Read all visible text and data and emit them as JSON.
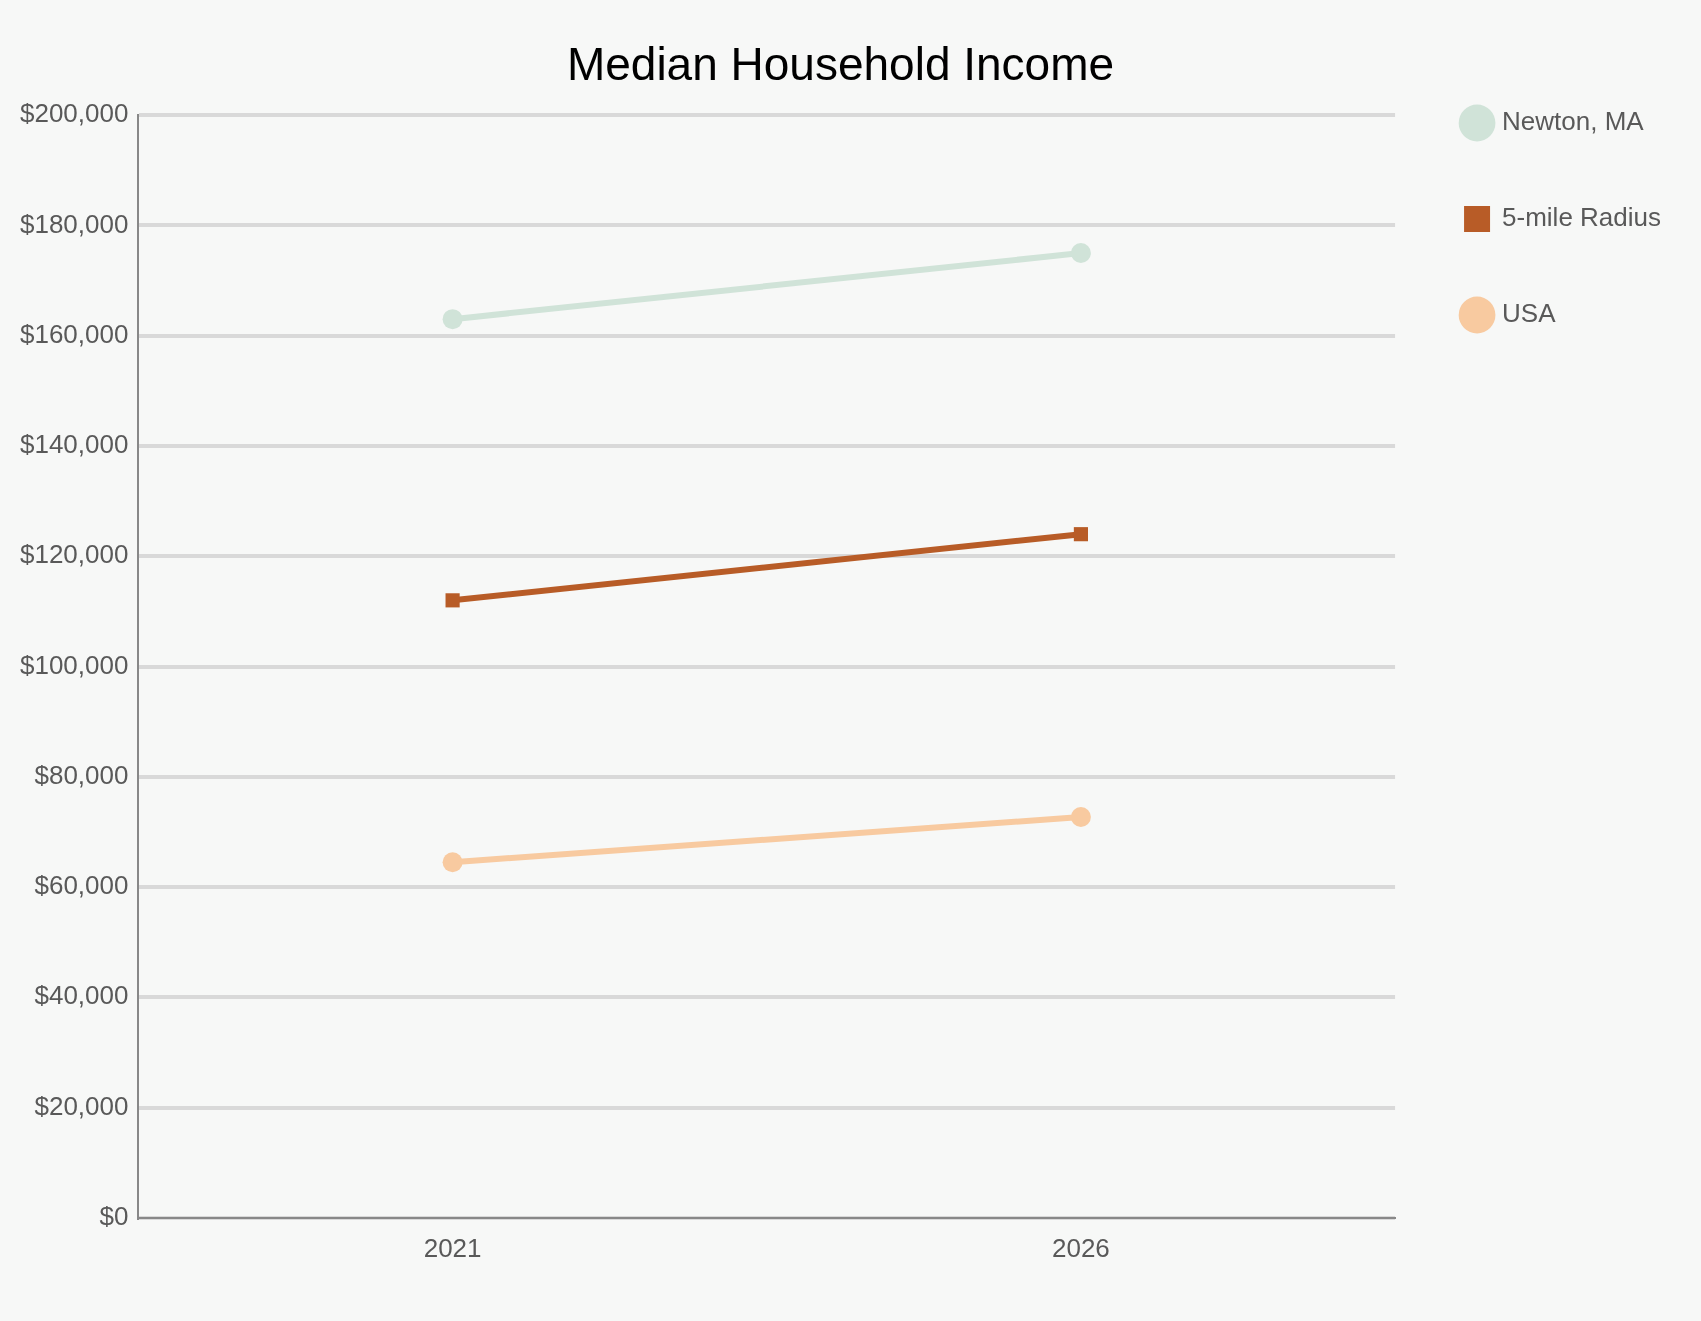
{
  "chart_data": {
    "type": "line",
    "title": "Median Household Income",
    "categories": [
      "2021",
      "2026"
    ],
    "series": [
      {
        "name": "Newton, MA",
        "color": "#d0e3d8",
        "values": [
          163000,
          175000
        ],
        "marker": "circle"
      },
      {
        "name": "5-mile Radius",
        "color": "#b85c27",
        "values": [
          112000,
          124000
        ],
        "marker": "square"
      },
      {
        "name": "USA",
        "color": "#f8caa0",
        "values": [
          64500,
          72700
        ],
        "marker": "circle"
      }
    ],
    "ylim": [
      0,
      200000
    ],
    "yticks": [
      {
        "value": 0,
        "label": "$0"
      },
      {
        "value": 20000,
        "label": "$20,000"
      },
      {
        "value": 40000,
        "label": "$40,000"
      },
      {
        "value": 60000,
        "label": "$60,000"
      },
      {
        "value": 80000,
        "label": "$80,000"
      },
      {
        "value": 100000,
        "label": "$100,000"
      },
      {
        "value": 120000,
        "label": "$120,000"
      },
      {
        "value": 140000,
        "label": "$140,000"
      },
      {
        "value": 160000,
        "label": "$160,000"
      },
      {
        "value": 180000,
        "label": "$180,000"
      },
      {
        "value": 200000,
        "label": "$200,000"
      }
    ],
    "grid": "y",
    "legend": "top right",
    "line_style": "solid"
  }
}
